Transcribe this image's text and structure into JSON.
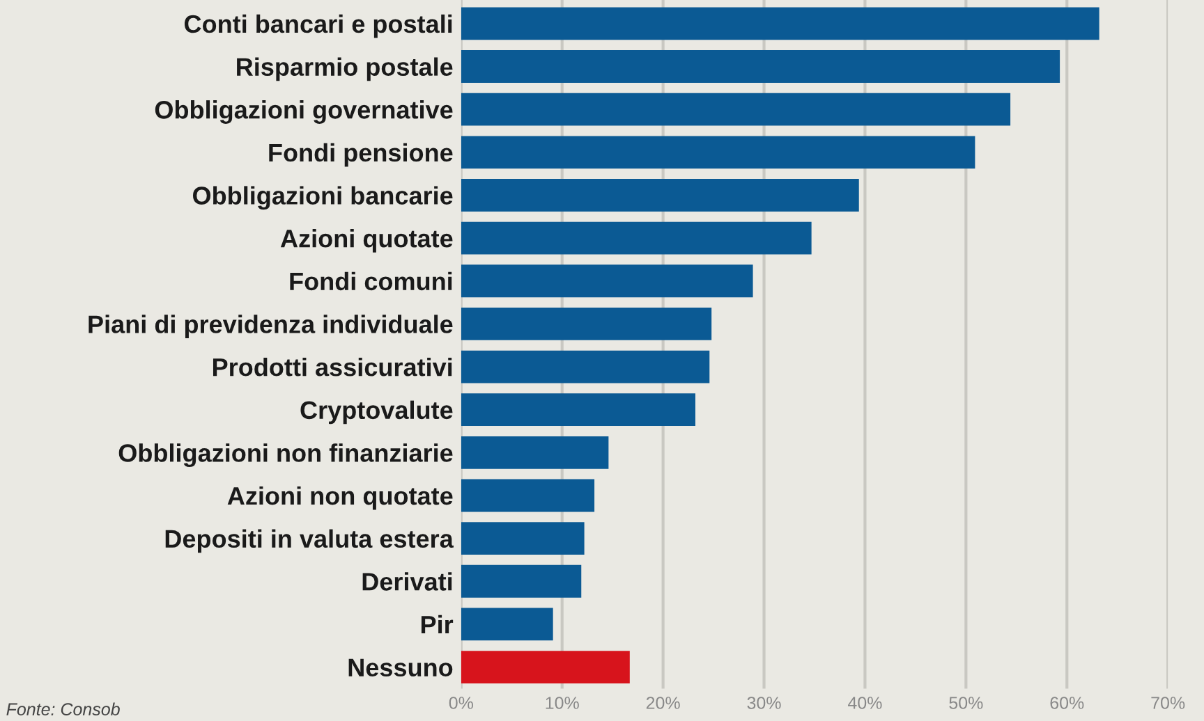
{
  "chart_data": {
    "type": "bar",
    "orientation": "horizontal",
    "categories": [
      "Conti bancari e postali",
      "Risparmio postale",
      "Obbligazioni governative",
      "Fondi pensione",
      "Obbligazioni bancarie",
      "Azioni quotate",
      "Fondi comuni",
      "Piani di previdenza individuale",
      "Prodotti assicurativi",
      "Cryptovalute",
      "Obbligazioni non finanziarie",
      "Azioni non quotate",
      "Depositi in valuta estera",
      "Derivati",
      "Pir",
      "Nessuno"
    ],
    "values": [
      63.2,
      59.3,
      54.4,
      50.9,
      39.4,
      34.7,
      28.9,
      24.8,
      24.6,
      23.2,
      14.6,
      13.2,
      12.2,
      11.9,
      9.1,
      16.7
    ],
    "colors": [
      "#0b5a94",
      "#0b5a94",
      "#0b5a94",
      "#0b5a94",
      "#0b5a94",
      "#0b5a94",
      "#0b5a94",
      "#0b5a94",
      "#0b5a94",
      "#0b5a94",
      "#0b5a94",
      "#0b5a94",
      "#0b5a94",
      "#0b5a94",
      "#0b5a94",
      "#d7141c"
    ],
    "xlim": [
      0,
      70
    ],
    "xticks": [
      {
        "value": 0,
        "label": "0%"
      },
      {
        "value": 10,
        "label": "10%"
      },
      {
        "value": 20,
        "label": "20%"
      },
      {
        "value": 30,
        "label": "30%"
      },
      {
        "value": 40,
        "label": "40%"
      },
      {
        "value": 50,
        "label": "50%"
      },
      {
        "value": 60,
        "label": "60%"
      },
      {
        "value": 70,
        "label": "70%"
      }
    ],
    "grid": "x",
    "annotations": [
      "Fonte: Consob"
    ]
  }
}
